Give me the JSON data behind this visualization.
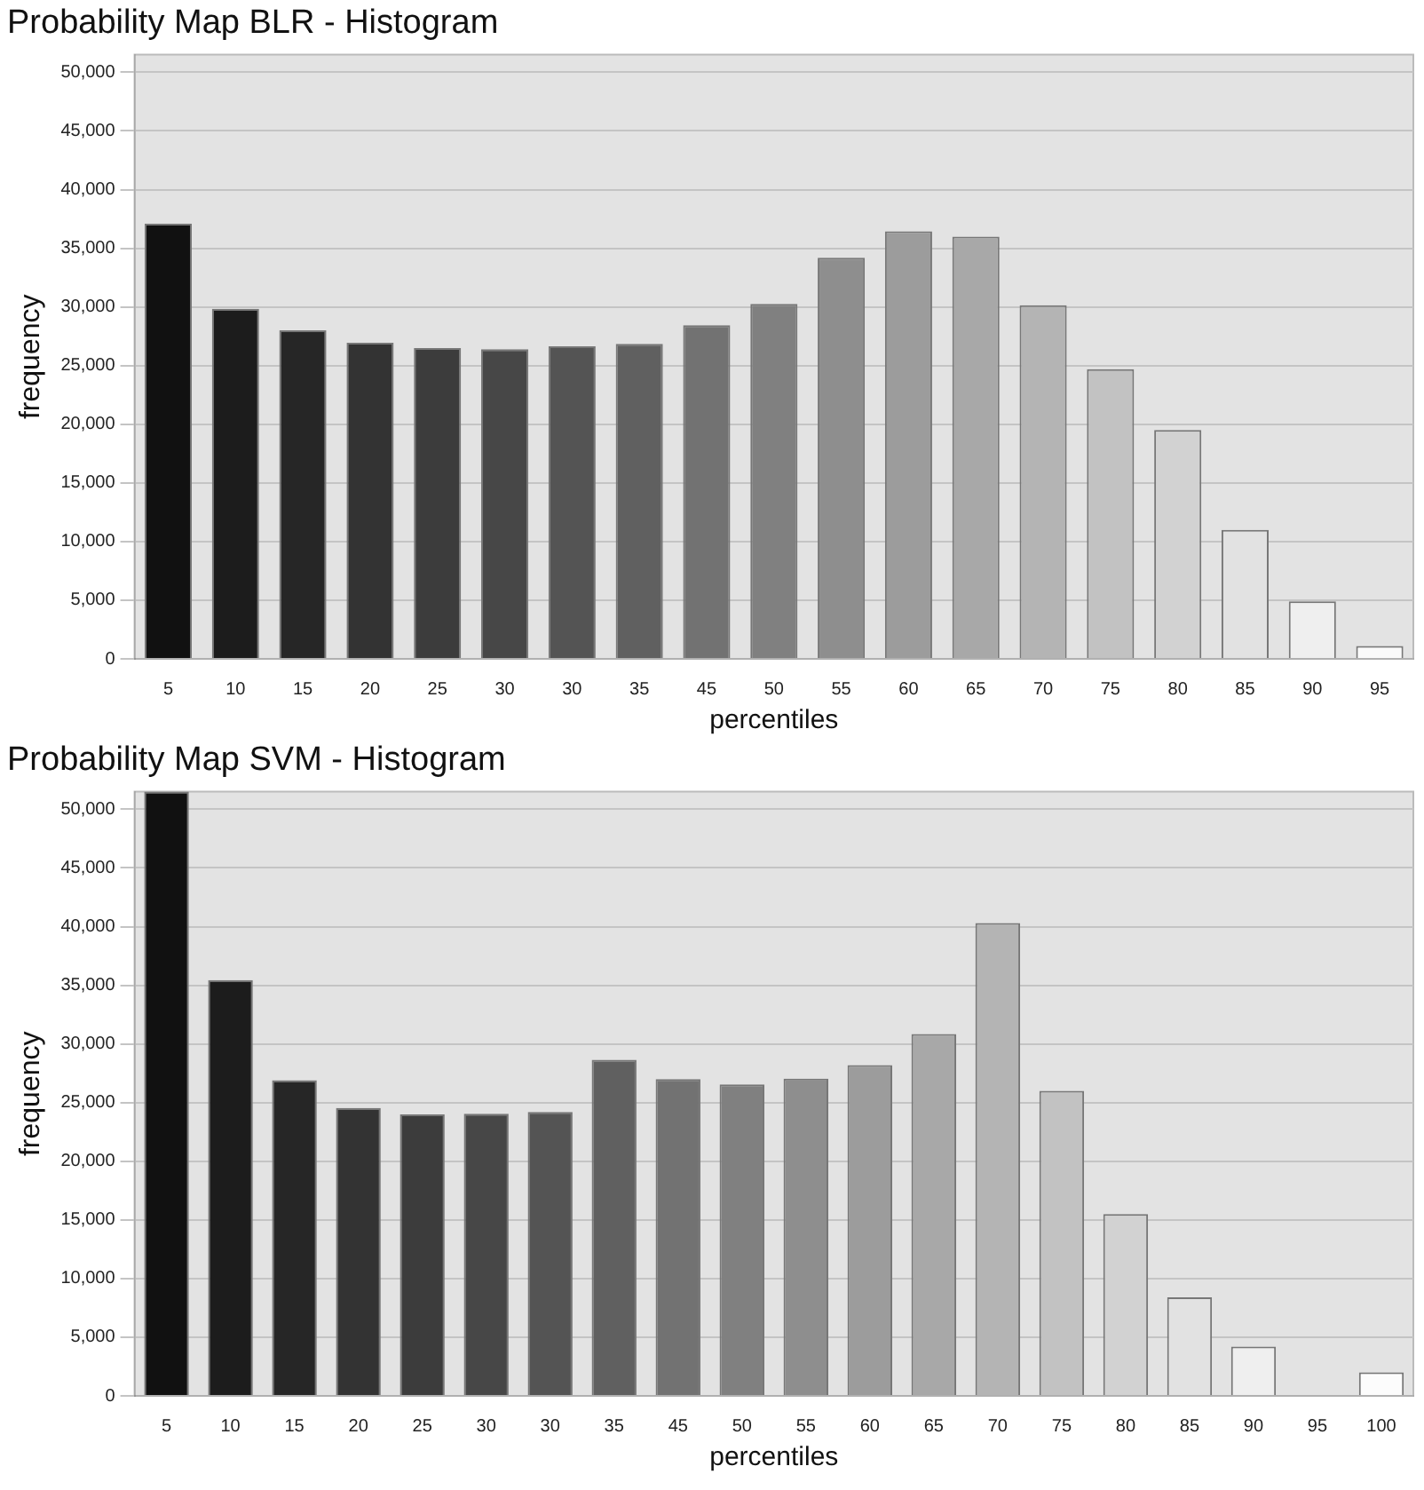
{
  "chart_data": [
    {
      "type": "bar",
      "title": "Probability Map BLR - Histogram",
      "xlabel": "percentiles",
      "ylabel": "frequency",
      "categories": [
        "5",
        "10",
        "15",
        "20",
        "25",
        "30",
        "30",
        "35",
        "45",
        "50",
        "55",
        "60",
        "65",
        "70",
        "75",
        "80",
        "85",
        "90",
        "95"
      ],
      "values": [
        37100,
        29850,
        28000,
        26950,
        26500,
        26400,
        26650,
        26850,
        28450,
        30250,
        34200,
        36450,
        36000,
        30150,
        24700,
        19500,
        11000,
        4900,
        1100
      ],
      "colors": [
        "#111111",
        "#1c1c1c",
        "#262626",
        "#333333",
        "#3c3c3c",
        "#474747",
        "#545454",
        "#606060",
        "#727272",
        "#808080",
        "#8e8e8e",
        "#9c9c9c",
        "#a8a8a8",
        "#b4b4b4",
        "#c2c2c2",
        "#d2d2d2",
        "#e2e2e2",
        "#efefef",
        "#fafafa"
      ],
      "ylim": [
        0,
        51500
      ],
      "yticks": [
        {
          "value": 0,
          "label": "0"
        },
        {
          "value": 5000,
          "label": "5,000"
        },
        {
          "value": 10000,
          "label": "10,000"
        },
        {
          "value": 15000,
          "label": "15,000"
        },
        {
          "value": 20000,
          "label": "20,000"
        },
        {
          "value": 25000,
          "label": "25,000"
        },
        {
          "value": 30000,
          "label": "30,000"
        },
        {
          "value": 35000,
          "label": "35,000"
        },
        {
          "value": 40000,
          "label": "40,000"
        },
        {
          "value": 45000,
          "label": "45,000"
        },
        {
          "value": 50000,
          "label": "50,000"
        }
      ],
      "grid": "y"
    },
    {
      "type": "bar",
      "title": "Probability Map SVM - Histogram",
      "xlabel": "percentiles",
      "ylabel": "frequency",
      "categories": [
        "5",
        "10",
        "15",
        "20",
        "25",
        "30",
        "30",
        "35",
        "45",
        "50",
        "55",
        "60",
        "65",
        "70",
        "75",
        "80",
        "85",
        "90",
        "95",
        "100"
      ],
      "values": [
        51500,
        35450,
        26900,
        24550,
        24000,
        24050,
        24200,
        28650,
        27000,
        26550,
        27050,
        28200,
        30850,
        40300,
        26000,
        15500,
        8400,
        4200,
        0,
        2000
      ],
      "colors": [
        "#111111",
        "#1c1c1c",
        "#262626",
        "#333333",
        "#3c3c3c",
        "#474747",
        "#545454",
        "#606060",
        "#727272",
        "#808080",
        "#8e8e8e",
        "#9c9c9c",
        "#a8a8a8",
        "#b4b4b4",
        "#c2c2c2",
        "#d2d2d2",
        "#e2e2e2",
        "#efefef",
        "#f6f6f6",
        "#fcfcfc"
      ],
      "ylim": [
        0,
        51500
      ],
      "yticks": [
        {
          "value": 0,
          "label": "0"
        },
        {
          "value": 5000,
          "label": "5,000"
        },
        {
          "value": 10000,
          "label": "10,000"
        },
        {
          "value": 15000,
          "label": "15,000"
        },
        {
          "value": 20000,
          "label": "20,000"
        },
        {
          "value": 25000,
          "label": "25,000"
        },
        {
          "value": 30000,
          "label": "30,000"
        },
        {
          "value": 35000,
          "label": "35,000"
        },
        {
          "value": 40000,
          "label": "40,000"
        },
        {
          "value": 45000,
          "label": "45,000"
        },
        {
          "value": 50000,
          "label": "50,000"
        }
      ],
      "grid": "y"
    }
  ]
}
